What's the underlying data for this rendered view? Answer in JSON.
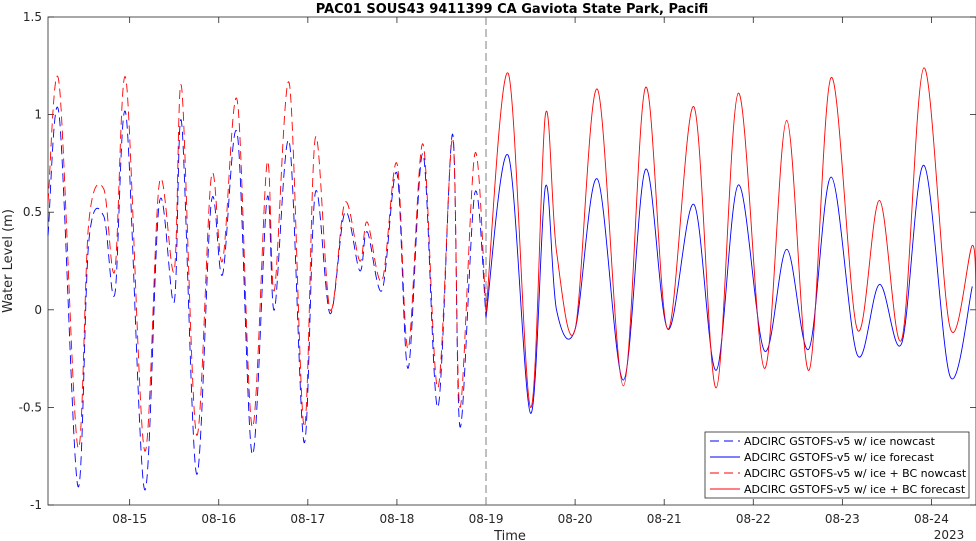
{
  "chart_data": {
    "type": "line",
    "title": "PAC01 SOUS43 9411399 CA Gaviota State Park, Pacifi",
    "xlabel": "Time",
    "ylabel": "Water Level (m)",
    "year_label": "2023",
    "xlim": [
      "2023-08-14 02:00",
      "2023-08-24 12:00"
    ],
    "ylim": [
      -1,
      1.5
    ],
    "yticks": [
      -1,
      -0.5,
      0,
      0.5,
      1,
      1.5
    ],
    "ytick_labels": [
      "-1",
      "-0.5",
      "0",
      "0.5",
      "1",
      "1.5"
    ],
    "xticks": [
      "2023-08-15",
      "2023-08-16",
      "2023-08-17",
      "2023-08-18",
      "2023-08-19",
      "2023-08-20",
      "2023-08-21",
      "2023-08-22",
      "2023-08-23",
      "2023-08-24"
    ],
    "xtick_labels": [
      "08-15",
      "08-16",
      "08-17",
      "08-18",
      "08-19",
      "08-20",
      "08-21",
      "08-22",
      "08-23",
      "08-24"
    ],
    "forecast_start": "2023-08-19",
    "grid": false,
    "legend_position": "bottom-right",
    "series": [
      {
        "name": "ADCIRC GSTOFS-v5 w/ ice nowcast",
        "color": "#0000ff",
        "dash": true,
        "x": [
          "2023-08-14 02:00",
          "2023-08-14 05:00",
          "2023-08-14 10:00",
          "2023-08-14 13:00",
          "2023-08-14 17:00",
          "2023-08-14 20:00",
          "2023-08-14 23:00",
          "2023-08-15 04:00",
          "2023-08-15 08:00",
          "2023-08-15 12:00",
          "2023-08-15 14:00",
          "2023-08-15 18:00",
          "2023-08-15 22:00",
          "2023-08-16 01:00",
          "2023-08-16 05:00",
          "2023-08-16 09:00",
          "2023-08-16 13:00",
          "2023-08-16 15:00",
          "2023-08-16 19:00",
          "2023-08-16 23:00",
          "2023-08-17 02:00",
          "2023-08-17 06:00",
          "2023-08-17 10:00",
          "2023-08-17 14:00",
          "2023-08-17 16:00",
          "2023-08-17 20:00",
          "2023-08-18 00:00",
          "2023-08-18 03:00",
          "2023-08-18 07:00",
          "2023-08-18 11:00",
          "2023-08-18 15:00",
          "2023-08-18 17:00",
          "2023-08-18 21:00",
          "2023-08-19 00:00"
        ],
        "values": [
          0.38,
          1.0,
          -0.9,
          0.35,
          0.48,
          0.08,
          1.0,
          -0.92,
          0.55,
          0.04,
          0.96,
          -0.84,
          0.55,
          0.18,
          0.9,
          -0.74,
          0.57,
          0.0,
          0.86,
          -0.68,
          0.6,
          -0.02,
          0.5,
          0.2,
          0.4,
          0.1,
          0.7,
          -0.3,
          0.8,
          -0.5,
          0.9,
          -0.6,
          0.6,
          -0.04
        ]
      },
      {
        "name": "ADCIRC GSTOFS-v5 w/ ice forecast",
        "color": "#0000ff",
        "dash": false,
        "x": [
          "2023-08-19 00:00",
          "2023-08-19 06:00",
          "2023-08-19 12:00",
          "2023-08-19 16:00",
          "2023-08-19 19:00",
          "2023-08-20 00:00",
          "2023-08-20 06:00",
          "2023-08-20 13:00",
          "2023-08-20 19:00",
          "2023-08-21 01:00",
          "2023-08-21 08:00",
          "2023-08-21 14:00",
          "2023-08-21 20:00",
          "2023-08-22 03:00",
          "2023-08-22 09:00",
          "2023-08-22 15:00",
          "2023-08-22 21:00",
          "2023-08-23 04:00",
          "2023-08-23 10:00",
          "2023-08-23 16:00",
          "2023-08-23 22:00",
          "2023-08-24 05:00",
          "2023-08-24 11:00"
        ],
        "values": [
          -0.04,
          0.79,
          -0.53,
          0.63,
          0.0,
          -0.1,
          0.67,
          -0.36,
          0.72,
          -0.1,
          0.54,
          -0.31,
          0.64,
          -0.21,
          0.31,
          -0.2,
          0.68,
          -0.23,
          0.13,
          -0.17,
          0.74,
          -0.34,
          0.12
        ]
      },
      {
        "name": "ADCIRC GSTOFS-v5 w/ ice + BC nowcast",
        "color": "#ff0000",
        "dash": true,
        "x": [
          "2023-08-14 02:00",
          "2023-08-14 05:00",
          "2023-08-14 10:00",
          "2023-08-14 13:00",
          "2023-08-14 17:00",
          "2023-08-14 20:00",
          "2023-08-14 23:00",
          "2023-08-15 04:00",
          "2023-08-15 08:00",
          "2023-08-15 12:00",
          "2023-08-15 14:00",
          "2023-08-15 18:00",
          "2023-08-15 22:00",
          "2023-08-16 01:00",
          "2023-08-16 05:00",
          "2023-08-16 09:00",
          "2023-08-16 13:00",
          "2023-08-16 15:00",
          "2023-08-16 19:00",
          "2023-08-16 23:00",
          "2023-08-17 02:00",
          "2023-08-17 06:00",
          "2023-08-17 10:00",
          "2023-08-17 14:00",
          "2023-08-17 16:00",
          "2023-08-17 20:00",
          "2023-08-18 00:00",
          "2023-08-18 03:00",
          "2023-08-18 07:00",
          "2023-08-18 11:00",
          "2023-08-18 15:00",
          "2023-08-18 17:00",
          "2023-08-18 21:00",
          "2023-08-19 00:00"
        ],
        "values": [
          0.55,
          1.16,
          -0.7,
          0.45,
          0.62,
          0.2,
          1.18,
          -0.72,
          0.65,
          0.2,
          1.14,
          -0.64,
          0.68,
          0.25,
          1.07,
          -0.6,
          0.75,
          0.1,
          1.16,
          -0.6,
          0.88,
          0.0,
          0.55,
          0.25,
          0.45,
          0.15,
          0.75,
          -0.2,
          0.85,
          -0.4,
          0.88,
          -0.5,
          0.8,
          -0.02
        ]
      },
      {
        "name": "ADCIRC GSTOFS-v5 w/ ice + BC forecast",
        "color": "#ff0000",
        "dash": false,
        "x": [
          "2023-08-19 00:00",
          "2023-08-19 06:00",
          "2023-08-19 12:00",
          "2023-08-19 16:00",
          "2023-08-19 19:00",
          "2023-08-20 00:00",
          "2023-08-20 06:00",
          "2023-08-20 13:00",
          "2023-08-20 19:00",
          "2023-08-21 01:00",
          "2023-08-21 08:00",
          "2023-08-21 14:00",
          "2023-08-21 20:00",
          "2023-08-22 03:00",
          "2023-08-22 09:00",
          "2023-08-22 15:00",
          "2023-08-22 21:00",
          "2023-08-23 04:00",
          "2023-08-23 10:00",
          "2023-08-23 16:00",
          "2023-08-23 22:00",
          "2023-08-24 05:00",
          "2023-08-24 11:00",
          "2023-08-24 12:00"
        ],
        "values": [
          -0.02,
          1.21,
          -0.5,
          1.0,
          0.3,
          -0.1,
          1.13,
          -0.39,
          1.14,
          -0.1,
          1.04,
          -0.4,
          1.11,
          -0.3,
          0.97,
          -0.31,
          1.19,
          -0.1,
          0.56,
          -0.15,
          1.24,
          -0.09,
          0.33,
          0.0
        ]
      }
    ]
  }
}
